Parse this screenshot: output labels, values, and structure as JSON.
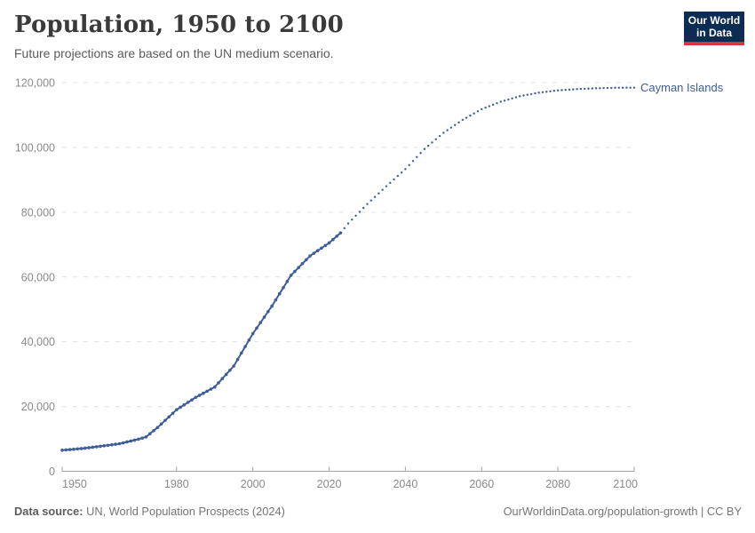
{
  "header": {
    "title": "Population, 1950 to 2100",
    "subtitle": "Future projections are based on the UN medium scenario."
  },
  "logo": {
    "line1": "Our World",
    "line2": "in Data"
  },
  "footer": {
    "source_label": "Data source:",
    "source_text": " UN, World Population Prospects (2024)",
    "credit": "OurWorldinData.org/population-growth | CC BY"
  },
  "colors": {
    "series_blue": "#3e5d9a",
    "gridline": "#e0e0e0",
    "axis": "#a3a3a3",
    "tick_label": "#8a8a8a",
    "logo_navy": "#0d2c54",
    "logo_red": "#d8353f"
  },
  "chart_data": {
    "type": "line",
    "title": "Population, 1950 to 2100",
    "subtitle": "Future projections are based on the UN medium scenario.",
    "entity": "Cayman Islands",
    "xlabel": "",
    "ylabel": "",
    "xlim": [
      1950,
      2100
    ],
    "ylim": [
      0,
      120000
    ],
    "x_ticks": [
      1950,
      1980,
      2000,
      2020,
      2040,
      2060,
      2080,
      2100
    ],
    "x_tick_labels": [
      "1950",
      "1980",
      "2000",
      "2020",
      "2040",
      "2060",
      "2080",
      "2100"
    ],
    "y_ticks": [
      0,
      20000,
      40000,
      60000,
      80000,
      100000,
      120000
    ],
    "y_tick_labels": [
      "0",
      "20,000",
      "40,000",
      "60,000",
      "80,000",
      "100,000",
      "120,000"
    ],
    "grid": "horizontal-dashed",
    "legend_position": "line-end-label",
    "series": [
      {
        "name": "Cayman Islands — estimates",
        "style": "solid-with-markers",
        "points": [
          [
            1950,
            6500
          ],
          [
            1955,
            7000
          ],
          [
            1960,
            7700
          ],
          [
            1965,
            8500
          ],
          [
            1970,
            9900
          ],
          [
            1972,
            10600
          ],
          [
            1975,
            13500
          ],
          [
            1980,
            19000
          ],
          [
            1985,
            22800
          ],
          [
            1990,
            26000
          ],
          [
            1995,
            32500
          ],
          [
            2000,
            42500
          ],
          [
            2005,
            51000
          ],
          [
            2010,
            60500
          ],
          [
            2015,
            66500
          ],
          [
            2020,
            70500
          ],
          [
            2023,
            73600
          ]
        ]
      },
      {
        "name": "Cayman Islands — UN medium projection",
        "style": "dotted",
        "points": [
          [
            2023,
            73600
          ],
          [
            2025,
            76500
          ],
          [
            2030,
            82500
          ],
          [
            2035,
            88000
          ],
          [
            2040,
            93300
          ],
          [
            2045,
            99500
          ],
          [
            2050,
            104500
          ],
          [
            2055,
            108500
          ],
          [
            2060,
            111800
          ],
          [
            2065,
            114100
          ],
          [
            2070,
            115800
          ],
          [
            2075,
            116900
          ],
          [
            2080,
            117600
          ],
          [
            2085,
            118000
          ],
          [
            2090,
            118250
          ],
          [
            2095,
            118400
          ],
          [
            2100,
            118450
          ]
        ]
      }
    ]
  }
}
